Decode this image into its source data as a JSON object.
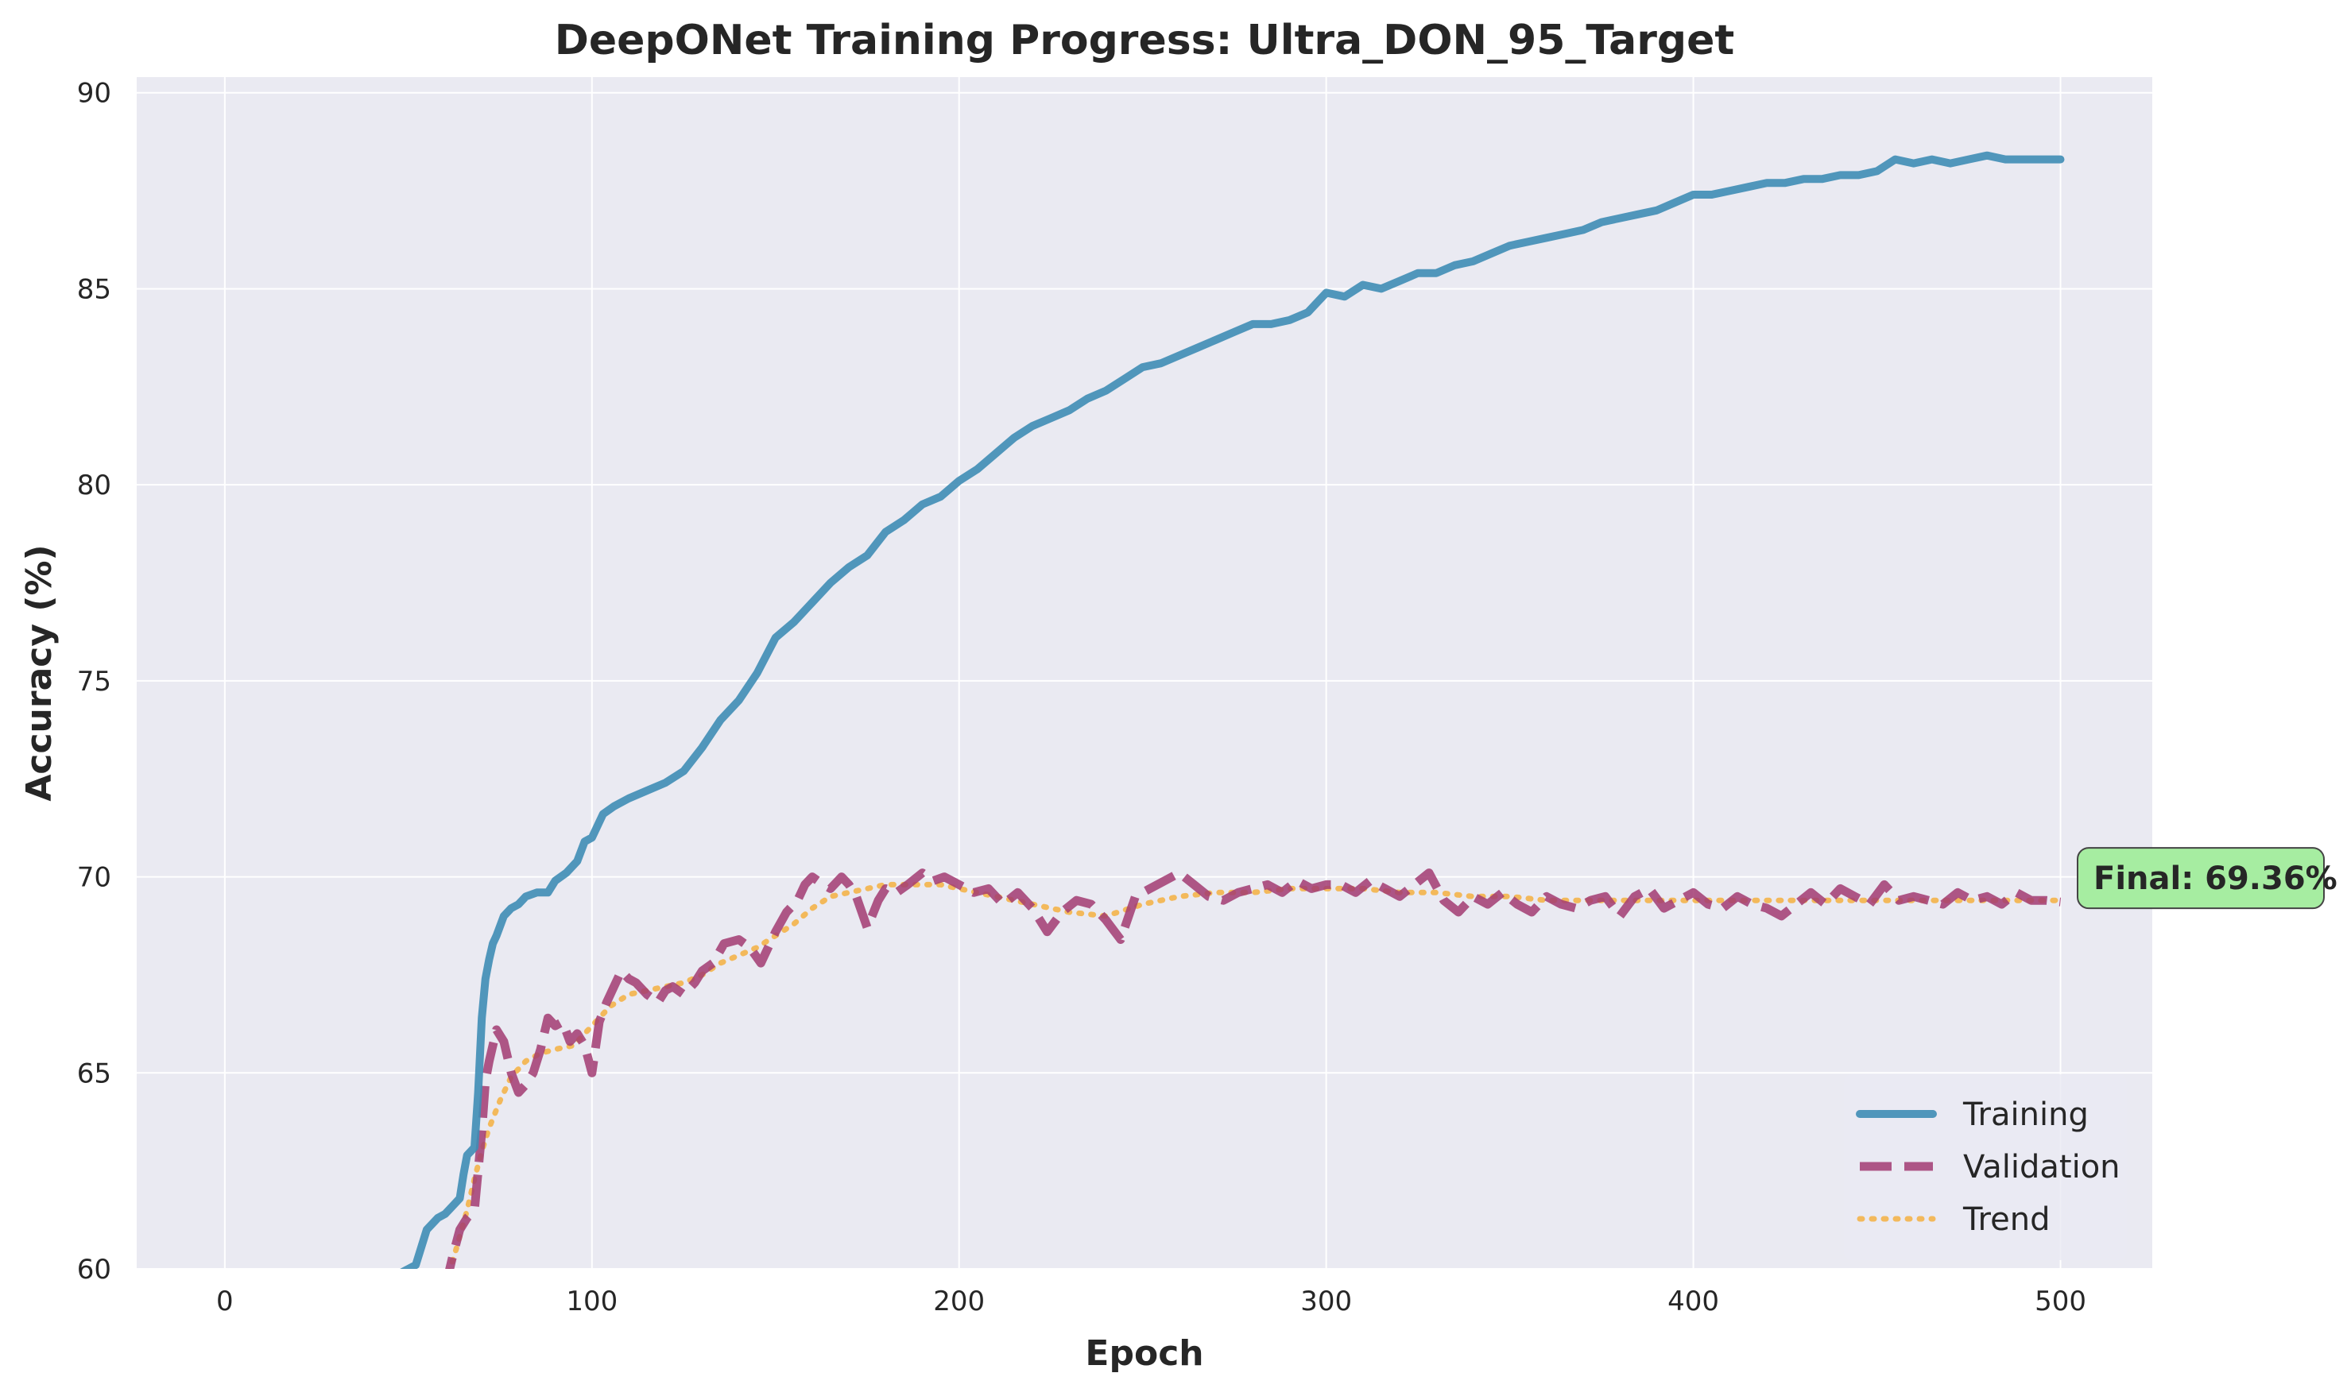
{
  "chart_data": {
    "type": "line",
    "title": "DeepONet Training Progress: Ultra_DON_95_Target",
    "xlabel": "Epoch",
    "ylabel": "Accuracy (%)",
    "xlim": [
      -24,
      525
    ],
    "ylim": [
      60,
      90.4
    ],
    "xticks": [
      0,
      100,
      200,
      300,
      400,
      500
    ],
    "yticks": [
      60,
      65,
      70,
      75,
      80,
      85,
      90
    ],
    "grid": true,
    "legend_position": "lower-right",
    "colors": {
      "plot_background": "#eaeaf2",
      "grid": "#ffffff",
      "training": "#3f8db5",
      "validation": "#a23b72",
      "trend": "#f5b041",
      "final_box": "#a6eda1"
    },
    "series": [
      {
        "name": "Training",
        "style": "solid",
        "x": [
          45,
          48,
          50,
          52,
          55,
          58,
          60,
          62,
          64,
          65,
          66,
          67,
          68,
          69,
          70,
          71,
          72,
          73,
          74,
          76,
          78,
          80,
          82,
          85,
          88,
          90,
          93,
          96,
          98,
          100,
          103,
          106,
          110,
          115,
          120,
          125,
          130,
          135,
          140,
          145,
          150,
          155,
          160,
          165,
          170,
          175,
          180,
          185,
          190,
          195,
          200,
          205,
          210,
          215,
          220,
          225,
          230,
          235,
          240,
          245,
          250,
          255,
          260,
          265,
          270,
          275,
          280,
          285,
          290,
          295,
          300,
          305,
          310,
          315,
          320,
          325,
          330,
          335,
          340,
          345,
          350,
          355,
          360,
          365,
          370,
          375,
          380,
          385,
          390,
          395,
          400,
          405,
          410,
          415,
          420,
          425,
          430,
          435,
          440,
          445,
          450,
          455,
          460,
          465,
          470,
          475,
          480,
          485,
          490,
          495,
          500
        ],
        "y": [
          59.6,
          59.9,
          60.0,
          60.1,
          61.0,
          61.3,
          61.4,
          61.6,
          61.8,
          62.4,
          62.9,
          63.0,
          63.1,
          64.5,
          66.4,
          67.4,
          67.9,
          68.3,
          68.5,
          69.0,
          69.2,
          69.3,
          69.5,
          69.6,
          69.6,
          69.9,
          70.1,
          70.4,
          70.9,
          71.0,
          71.6,
          71.8,
          72.0,
          72.2,
          72.4,
          72.7,
          73.3,
          74.0,
          74.5,
          75.2,
          76.1,
          76.5,
          77.0,
          77.5,
          77.9,
          78.2,
          78.8,
          79.1,
          79.5,
          79.7,
          80.1,
          80.4,
          80.8,
          81.2,
          81.5,
          81.7,
          81.9,
          82.2,
          82.4,
          82.7,
          83.0,
          83.1,
          83.3,
          83.5,
          83.7,
          83.9,
          84.1,
          84.1,
          84.2,
          84.4,
          84.9,
          84.8,
          85.1,
          85.0,
          85.2,
          85.4,
          85.4,
          85.6,
          85.7,
          85.9,
          86.1,
          86.2,
          86.3,
          86.4,
          86.5,
          86.7,
          86.8,
          86.9,
          87.0,
          87.2,
          87.4,
          87.4,
          87.5,
          87.6,
          87.7,
          87.7,
          87.8,
          87.8,
          87.9,
          87.9,
          88.0,
          88.3,
          88.2,
          88.3,
          88.2,
          88.3,
          88.4,
          88.3,
          88.3,
          88.3,
          88.3
        ]
      },
      {
        "name": "Validation",
        "style": "dashed",
        "x": [
          60,
          62,
          64,
          66,
          68,
          70,
          71,
          72,
          74,
          76,
          78,
          80,
          82,
          84,
          86,
          88,
          90,
          92,
          94,
          96,
          98,
          100,
          102,
          104,
          106,
          108,
          110,
          112,
          115,
          118,
          120,
          122,
          125,
          128,
          130,
          133,
          136,
          140,
          143,
          146,
          150,
          153,
          156,
          158,
          160,
          163,
          165,
          168,
          170,
          172,
          175,
          178,
          180,
          183,
          186,
          190,
          193,
          196,
          200,
          204,
          208,
          212,
          216,
          220,
          224,
          228,
          232,
          236,
          240,
          244,
          248,
          252,
          256,
          260,
          264,
          268,
          272,
          276,
          280,
          284,
          288,
          292,
          296,
          300,
          304,
          308,
          312,
          316,
          320,
          324,
          328,
          332,
          336,
          340,
          344,
          348,
          352,
          356,
          360,
          364,
          368,
          372,
          376,
          380,
          384,
          388,
          392,
          396,
          400,
          404,
          408,
          412,
          416,
          420,
          424,
          428,
          432,
          436,
          440,
          444,
          448,
          452,
          456,
          460,
          464,
          468,
          472,
          476,
          480,
          484,
          488,
          492,
          496,
          500
        ],
        "y": [
          59.5,
          60.3,
          61.0,
          61.3,
          61.5,
          63.5,
          64.8,
          65.3,
          66.1,
          65.8,
          65.0,
          64.5,
          64.7,
          65.0,
          65.6,
          66.4,
          66.2,
          66.3,
          65.8,
          66.0,
          65.7,
          65.0,
          66.3,
          66.8,
          67.2,
          67.6,
          67.4,
          67.3,
          67.0,
          66.8,
          67.1,
          67.2,
          67.0,
          67.3,
          67.6,
          67.8,
          68.3,
          68.4,
          68.2,
          67.8,
          68.6,
          69.1,
          69.4,
          69.8,
          70.0,
          69.8,
          69.7,
          70.0,
          69.8,
          69.5,
          68.7,
          69.4,
          69.7,
          69.6,
          69.8,
          70.1,
          69.9,
          70.0,
          69.8,
          69.6,
          69.7,
          69.3,
          69.6,
          69.2,
          68.6,
          69.1,
          69.4,
          69.3,
          68.9,
          68.4,
          69.5,
          69.7,
          69.9,
          70.1,
          69.8,
          69.5,
          69.4,
          69.6,
          69.7,
          69.8,
          69.6,
          69.9,
          69.7,
          69.8,
          69.8,
          69.6,
          69.9,
          69.7,
          69.5,
          69.8,
          70.1,
          69.4,
          69.1,
          69.5,
          69.3,
          69.6,
          69.3,
          69.1,
          69.5,
          69.3,
          69.2,
          69.4,
          69.5,
          69.0,
          69.5,
          69.7,
          69.2,
          69.4,
          69.6,
          69.3,
          69.2,
          69.5,
          69.3,
          69.2,
          69.0,
          69.3,
          69.6,
          69.3,
          69.7,
          69.5,
          69.3,
          69.8,
          69.4,
          69.5,
          69.4,
          69.3,
          69.6,
          69.4,
          69.5,
          69.3,
          69.6,
          69.4,
          69.4,
          69.36
        ]
      },
      {
        "name": "Trend",
        "style": "dotted",
        "x": [
          60,
          63,
          66,
          68,
          70,
          72,
          75,
          78,
          82,
          86,
          90,
          95,
          100,
          105,
          110,
          115,
          120,
          125,
          130,
          135,
          140,
          145,
          150,
          155,
          160,
          165,
          170,
          175,
          180,
          185,
          190,
          195,
          200,
          210,
          220,
          230,
          240,
          250,
          260,
          270,
          280,
          290,
          300,
          310,
          320,
          330,
          340,
          350,
          360,
          370,
          380,
          390,
          400,
          410,
          420,
          430,
          440,
          450,
          460,
          470,
          480,
          490,
          500
        ],
        "y": [
          59.6,
          60.5,
          61.5,
          62.3,
          63.0,
          63.6,
          64.3,
          64.9,
          65.3,
          65.5,
          65.6,
          65.7,
          66.2,
          66.7,
          67.0,
          67.1,
          67.2,
          67.3,
          67.5,
          67.8,
          68.0,
          68.2,
          68.5,
          68.8,
          69.2,
          69.5,
          69.6,
          69.7,
          69.8,
          69.8,
          69.8,
          69.8,
          69.7,
          69.5,
          69.3,
          69.1,
          69.0,
          69.3,
          69.5,
          69.6,
          69.6,
          69.7,
          69.7,
          69.7,
          69.6,
          69.6,
          69.5,
          69.5,
          69.4,
          69.4,
          69.4,
          69.4,
          69.4,
          69.4,
          69.4,
          69.4,
          69.4,
          69.4,
          69.4,
          69.4,
          69.4,
          69.4,
          69.4
        ]
      }
    ],
    "annotation": {
      "text": "Final: 69.36%",
      "x": 500,
      "y": 69.36
    }
  }
}
